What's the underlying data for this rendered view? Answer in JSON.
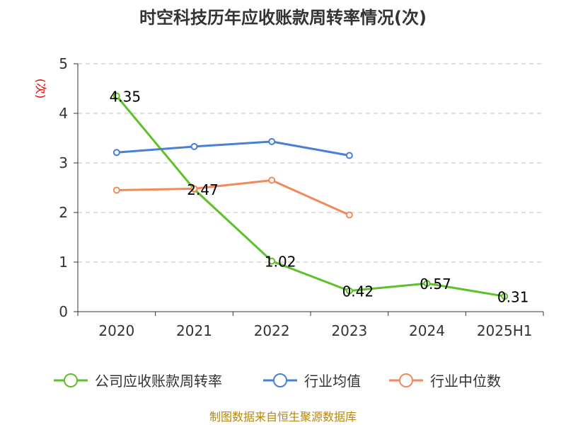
{
  "chart_data": {
    "type": "line",
    "title": "时空科技历年应收账款周转率情况(次)",
    "ylabel": "(次)",
    "categories": [
      "2020",
      "2021",
      "2022",
      "2023",
      "2024",
      "2025H1"
    ],
    "ylim": [
      0,
      5
    ],
    "yticks": [
      "0",
      "1",
      "2",
      "3",
      "4",
      "5"
    ],
    "grid": true,
    "legend_position": "bottom",
    "series": [
      {
        "name": "公司应收账款周转率",
        "color": "#5ec12a",
        "values": [
          4.35,
          2.47,
          1.02,
          0.42,
          0.57,
          0.31
        ],
        "labels": [
          "4.35",
          "2.47",
          "1.02",
          "0.42",
          "0.57",
          "0.31"
        ]
      },
      {
        "name": "行业均值",
        "color": "#4a7fd6",
        "values": [
          3.21,
          3.33,
          3.43,
          3.15,
          null,
          null
        ]
      },
      {
        "name": "行业中位数",
        "color": "#f2895a",
        "values": [
          2.45,
          2.48,
          2.65,
          1.95,
          null,
          null
        ]
      }
    ],
    "source": "制图数据来自恒生聚源数据库"
  }
}
